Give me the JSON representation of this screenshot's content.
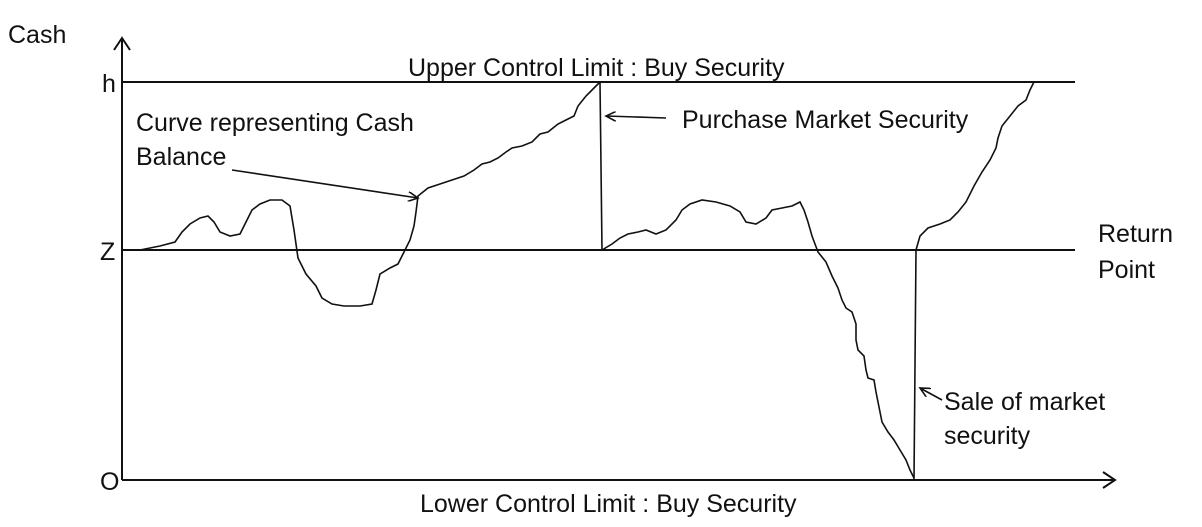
{
  "axis": {
    "y_label": "Cash",
    "origin_label": "O",
    "z_label": "Z",
    "h_label": "h"
  },
  "lines": {
    "upper_limit": "Upper Control Limit : Buy Security",
    "lower_limit": "Lower Control Limit : Buy Security",
    "return_point_line1": "Return",
    "return_point_line2": "Point"
  },
  "annotations": {
    "curve_line1": "Curve representing Cash",
    "curve_line2": "Balance",
    "purchase": "Purchase Market Security",
    "sale_line1": "Sale of market",
    "sale_line2": "security"
  }
}
